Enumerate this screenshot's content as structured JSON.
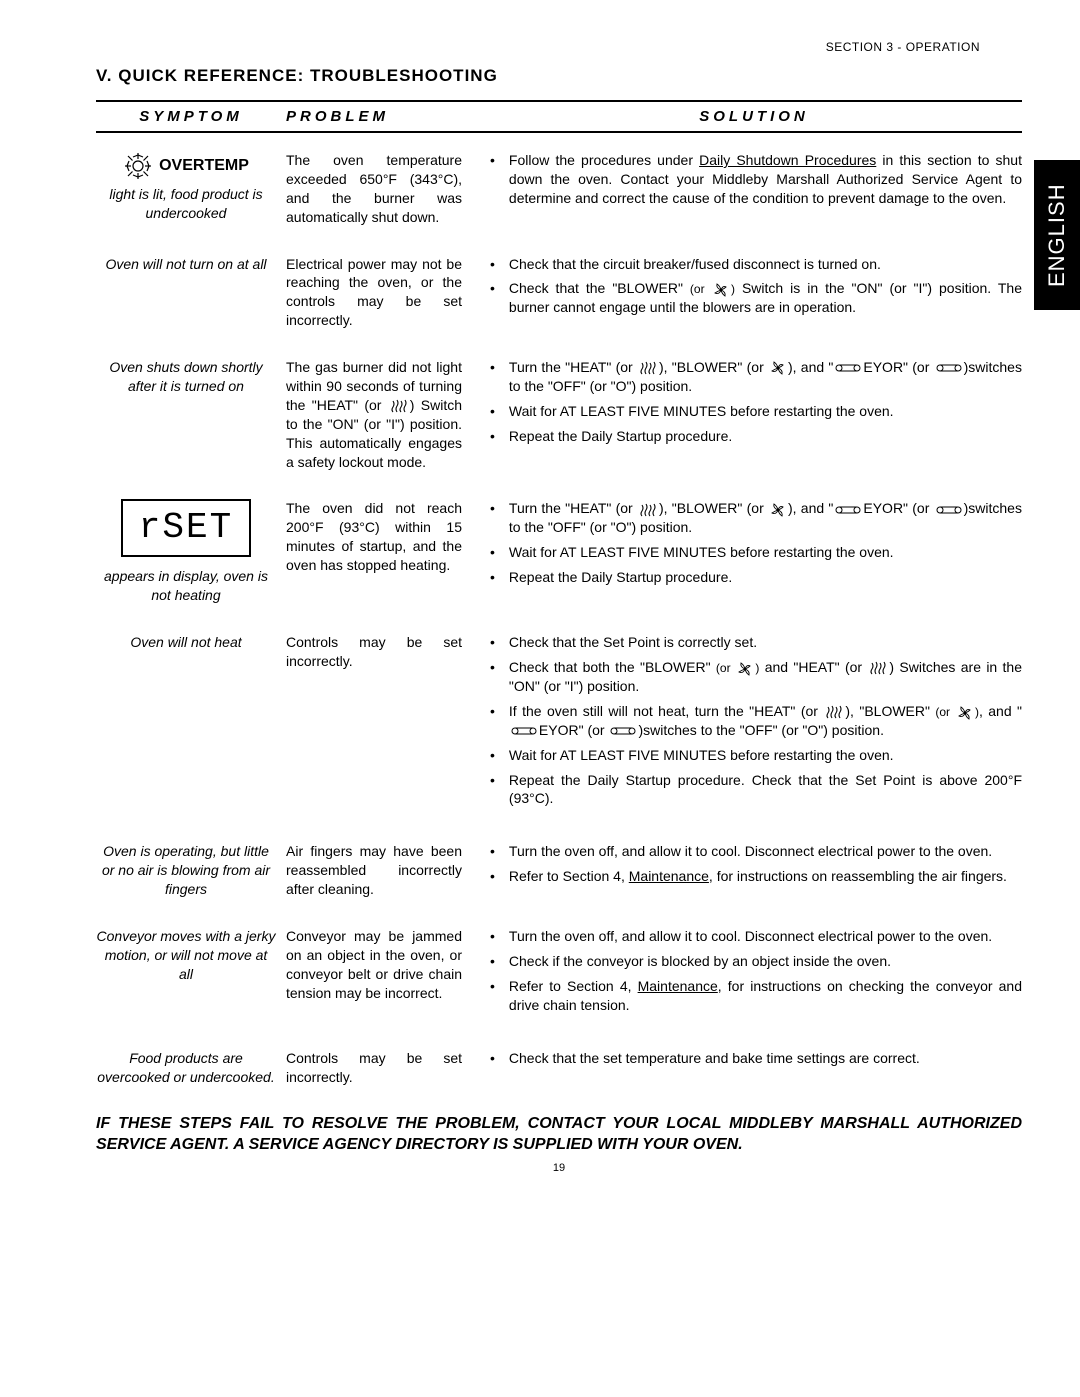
{
  "section_header": "SECTION 3 - OPERATION",
  "title": "V.  QUICK  REFERENCE:    TROUBLESHOOTING",
  "lang_tab": "ENGLISH",
  "page_number": "19",
  "columns": {
    "symptom": "SYMPTOM",
    "problem": "PROBLEM",
    "solution": "SOLUTION"
  },
  "overtemp_label": "OVERTEMP",
  "rset_display": "rSET",
  "rows": [
    {
      "symptom_extra_html": "overtemp",
      "symptom": "light is lit, food product is undercooked",
      "problem": "The oven temperature exceeded 650°F (343°C), and the burner was automatically shut down.",
      "solutions": [
        "Follow the procedures under <u>Daily Shutdown Procedures</u> in this section to shut down the oven.  Contact your Middleby Marshall Authorized Service Agent to determine and correct the cause of the condition to prevent damage to the oven."
      ]
    },
    {
      "symptom": "Oven will not turn on at all",
      "problem": "Electrical power may not be reaching the oven, or the controls may be set incorrectly.",
      "solutions": [
        "Check that the circuit breaker/fused disconnect is turned on.",
        "Check that the \"BLOWER\" <span class='small-txt'>(or FAN)</span> Switch is in the \"ON\" (or \"I\") position.  The burner cannot engage until the blowers are in operation."
      ]
    },
    {
      "symptom": "Oven shuts down shortly after it is turned on",
      "problem": "The gas burner did not light within 90 seconds of turning the \"HEAT\" (or HEAT-ICON) Switch to the \"ON\" (or \"I\") position. This automatically engages a safety lockout mode.",
      "solutions": [
        "Turn the \"HEAT\" (or HEAT-ICON), \"BLOWER\" (or FAN), and \"CONVEYOR\" (or CONV)switches to the \"OFF\" (or \"O\") position.",
        "Wait for AT LEAST FIVE MINUTES before restarting the oven.",
        "Repeat the Daily Startup procedure."
      ]
    },
    {
      "symptom_extra_html": "rset",
      "symptom": "appears in display, oven is not heating",
      "problem": "The oven did not reach 200°F (93°C) within 15 minutes of startup, and the oven has stopped heating.",
      "solutions": [
        "Turn the \"HEAT\" (or HEAT-ICON), \"BLOWER\" (or FAN), and \"CONVEYOR\" (or CONV)switches to the \"OFF\" (or \"O\") position.",
        "Wait for AT LEAST FIVE MINUTES before restarting the oven.",
        "Repeat the Daily Startup procedure."
      ]
    },
    {
      "symptom": "Oven will not heat",
      "problem": "Controls may be set incorrectly.",
      "solutions": [
        "Check that the Set Point is correctly set.",
        "Check that both the \"BLOWER\" <span class='small-txt'>(or FAN)</span> and \"HEAT\" (or HEAT-ICON) Switches are in the \"ON\" (or \"I\") position.",
        "If the oven still will not heat, turn the \"HEAT\" (or HEAT-ICON), \"BLOWER\" <span class='small-txt'>(or FAN)</span>, and \"CONVEYOR\" (or CONV)switches to the \"OFF\" (or \"O\") position.",
        "Wait for AT LEAST FIVE MINUTES before restarting the oven.",
        "Repeat the Daily Startup procedure.  Check that the Set Point is above 200°F (93°C)."
      ]
    },
    {
      "symptom": "Oven is operating, but little or no air is blowing from air fingers",
      "problem": "Air fingers may have been reassembled incorrectly after cleaning.",
      "solutions": [
        "Turn the oven off, and allow it to cool.  Disconnect electrical power to the oven.",
        "Refer to Section 4, <u>Maintenance</u>, for instructions on reassembling the air fingers."
      ]
    },
    {
      "symptom": "Conveyor moves with a jerky motion, or will not move at all",
      "problem": "Conveyor may be jammed on an object in the oven, or conveyor belt or drive chain tension may be incorrect.",
      "solutions": [
        "Turn the oven off, and allow it to cool.  Disconnect electrical power to the oven.",
        "Check if the conveyor is blocked by an object inside the oven.",
        "Refer to Section 4, <u>Maintenance</u>, for instructions on checking the conveyor and drive chain tension."
      ]
    },
    {
      "symptom": "Food products are overcooked or undercooked.",
      "problem": "Controls may be set incorrectly.",
      "solutions": [
        "Check that the set temperature and bake time settings are correct."
      ]
    }
  ],
  "footer": "IF THESE STEPS FAIL TO RESOLVE THE PROBLEM, CONTACT YOUR LOCAL MIDDLEBY MARSHALL AUTHORIZED SERVICE AGENT.  A SERVICE AGENCY DIRECTORY IS SUPPLIED WITH YOUR OVEN.",
  "icons": {
    "heat_svg": "<svg class='inline-icon' data-name='heat-icon' data-interactable='false' width='18' height='14' viewBox='0 0 18 14'><path d='M3 2 Q5 5 3 8 Q1 11 3 13 M7 1 Q9 4 7 7 Q5 10 7 13 M11 2 Q13 5 11 8 Q9 11 11 13 M15 1 Q17 4 15 7 Q13 10 15 13' stroke='#000' stroke-width='1.1' fill='none'/></svg>",
    "fan_svg": "<svg class='inline-icon' data-name='fan-icon' data-interactable='false' width='16' height='14' viewBox='0 0 16 14'><circle cx='8' cy='7' r='1.5' fill='#000'/><path d='M8 7 Q10 2 13 4 Q11 6 8 7 M8 7 Q3 5 4 1 Q7 3 8 7 M8 7 Q6 12 2 10 Q5 8 8 7 M8 7 Q13 9 12 13 Q9 11 8 7' stroke='#000' stroke-width='0.9' fill='none'/></svg>",
    "conveyor_svg": "<svg class='inline-icon' data-name='conveyor-icon' data-interactable='false' width='26' height='10' viewBox='0 0 26 10'><ellipse cx='4' cy='5' rx='3' ry='3' stroke='#000' stroke-width='1' fill='none'/><ellipse cx='22' cy='5' rx='3' ry='3' stroke='#000' stroke-width='1' fill='none'/><line x1='4' y1='2' x2='22' y2='2' stroke='#000' stroke-width='1'/><line x1='4' y1='8' x2='22' y2='8' stroke='#000' stroke-width='1'/></svg>",
    "sun_svg": "<svg class='sun-icon' data-name='overtemp-sun-icon' data-interactable='false' viewBox='0 0 30 30'><circle cx='15' cy='15' r='5' stroke='#000' stroke-width='1.2' fill='none'/><g stroke='#000' stroke-width='1.2'><line x1='15' y1='2' x2='15' y2='8'/><line x1='15' y1='22' x2='15' y2='28'/><line x1='2' y1='15' x2='8' y2='15'/><line x1='22' y1='15' x2='28' y2='15'/><line x1='5' y1='5' x2='9.5' y2='9.5'/><line x1='20.5' y1='20.5' x2='25' y2='25'/><line x1='5' y1='25' x2='9.5' y2='20.5'/><line x1='20.5' y1='9.5' x2='25' y2='5'/><line x1='15' y1='4' x2='10' y2='6'/><line x1='15' y1='4' x2='20' y2='6'/><line x1='26' y1='15' x2='24' y2='10'/><line x1='26' y1='15' x2='24' y2='20'/><line x1='15' y1='26' x2='10' y2='24'/><line x1='15' y1='26' x2='20' y2='24'/><line x1='4' y1='15' x2='6' y2='10'/><line x1='4' y1='15' x2='6' y2='20'/></g></svg>"
  }
}
